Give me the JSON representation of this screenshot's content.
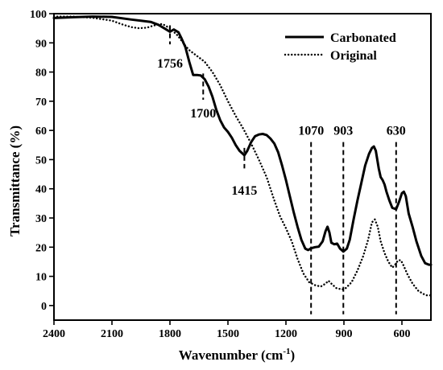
{
  "chart_data": {
    "type": "line",
    "title": "",
    "xlabel": "Wavenumber (cm",
    "xlabel_sup": "-1",
    "xlabel_tail": ")",
    "ylabel": "Transmittance (%)",
    "xlim": [
      2400,
      450
    ],
    "ylim": [
      -5,
      100
    ],
    "x_reversed": true,
    "x_ticks": [
      2400,
      2100,
      1800,
      1500,
      1200,
      900,
      600
    ],
    "y_ticks": [
      0,
      10,
      20,
      30,
      40,
      50,
      60,
      70,
      80,
      90,
      100
    ],
    "grid": false,
    "legend": "top-right",
    "series": [
      {
        "name": "Carbonated",
        "style": "solid",
        "color": "#000000",
        "points": [
          [
            2400,
            98.5
          ],
          [
            2300,
            98.8
          ],
          [
            2200,
            99.0
          ],
          [
            2100,
            98.9
          ],
          [
            2000,
            98.0
          ],
          [
            1950,
            97.6
          ],
          [
            1900,
            97.2
          ],
          [
            1860,
            96.2
          ],
          [
            1830,
            95.0
          ],
          [
            1800,
            93.8
          ],
          [
            1780,
            94.6
          ],
          [
            1756,
            93.6
          ],
          [
            1740,
            91.5
          ],
          [
            1720,
            88.5
          ],
          [
            1700,
            83.5
          ],
          [
            1680,
            79.0
          ],
          [
            1660,
            79.0
          ],
          [
            1640,
            78.8
          ],
          [
            1620,
            77.5
          ],
          [
            1600,
            75.0
          ],
          [
            1580,
            71.5
          ],
          [
            1560,
            67.0
          ],
          [
            1540,
            63.5
          ],
          [
            1520,
            61.0
          ],
          [
            1500,
            59.5
          ],
          [
            1480,
            57.5
          ],
          [
            1460,
            55.0
          ],
          [
            1440,
            53.0
          ],
          [
            1415,
            51.5
          ],
          [
            1400,
            53.0
          ],
          [
            1380,
            56.0
          ],
          [
            1360,
            58.0
          ],
          [
            1340,
            58.6
          ],
          [
            1320,
            58.8
          ],
          [
            1300,
            58.4
          ],
          [
            1280,
            57.2
          ],
          [
            1260,
            55.5
          ],
          [
            1240,
            52.5
          ],
          [
            1220,
            48.0
          ],
          [
            1200,
            43.0
          ],
          [
            1180,
            37.5
          ],
          [
            1160,
            32.0
          ],
          [
            1140,
            27.0
          ],
          [
            1120,
            22.5
          ],
          [
            1100,
            19.5
          ],
          [
            1085,
            19.0
          ],
          [
            1070,
            19.6
          ],
          [
            1050,
            20.0
          ],
          [
            1030,
            20.2
          ],
          [
            1010,
            22.0
          ],
          [
            995,
            25.5
          ],
          [
            985,
            27.0
          ],
          [
            975,
            25.0
          ],
          [
            965,
            21.5
          ],
          [
            950,
            21.0
          ],
          [
            935,
            21.2
          ],
          [
            920,
            19.5
          ],
          [
            903,
            18.5
          ],
          [
            885,
            19.5
          ],
          [
            870,
            22.5
          ],
          [
            850,
            29.5
          ],
          [
            830,
            36.0
          ],
          [
            810,
            42.0
          ],
          [
            790,
            48.0
          ],
          [
            770,
            52.0
          ],
          [
            755,
            54.0
          ],
          [
            745,
            54.5
          ],
          [
            735,
            53.0
          ],
          [
            720,
            47.0
          ],
          [
            710,
            44.0
          ],
          [
            700,
            43.0
          ],
          [
            690,
            41.5
          ],
          [
            680,
            39.0
          ],
          [
            665,
            36.0
          ],
          [
            650,
            33.5
          ],
          [
            630,
            33.0
          ],
          [
            615,
            35.5
          ],
          [
            600,
            38.5
          ],
          [
            590,
            39.0
          ],
          [
            580,
            37.5
          ],
          [
            565,
            31.5
          ],
          [
            545,
            27.0
          ],
          [
            525,
            22.0
          ],
          [
            500,
            17.0
          ],
          [
            480,
            14.5
          ],
          [
            460,
            14.0
          ],
          [
            450,
            14.0
          ]
        ]
      },
      {
        "name": "Original",
        "style": "dotted",
        "color": "#000000",
        "points": [
          [
            2400,
            99.0
          ],
          [
            2300,
            99.0
          ],
          [
            2200,
            98.6
          ],
          [
            2100,
            97.6
          ],
          [
            2050,
            96.4
          ],
          [
            2000,
            95.4
          ],
          [
            1960,
            95.0
          ],
          [
            1920,
            95.2
          ],
          [
            1880,
            96.0
          ],
          [
            1840,
            96.5
          ],
          [
            1800,
            95.0
          ],
          [
            1760,
            92.5
          ],
          [
            1720,
            89.0
          ],
          [
            1700,
            87.5
          ],
          [
            1660,
            85.5
          ],
          [
            1620,
            83.5
          ],
          [
            1580,
            80.0
          ],
          [
            1540,
            75.5
          ],
          [
            1500,
            70.0
          ],
          [
            1460,
            65.0
          ],
          [
            1420,
            60.5
          ],
          [
            1380,
            55.5
          ],
          [
            1340,
            50.0
          ],
          [
            1300,
            44.0
          ],
          [
            1260,
            36.0
          ],
          [
            1230,
            30.5
          ],
          [
            1200,
            26.5
          ],
          [
            1170,
            22.0
          ],
          [
            1140,
            16.0
          ],
          [
            1110,
            11.0
          ],
          [
            1080,
            8.0
          ],
          [
            1050,
            7.0
          ],
          [
            1020,
            6.5
          ],
          [
            995,
            7.5
          ],
          [
            980,
            8.5
          ],
          [
            965,
            7.5
          ],
          [
            940,
            6.0
          ],
          [
            910,
            5.5
          ],
          [
            890,
            6.0
          ],
          [
            860,
            8.0
          ],
          [
            830,
            12.0
          ],
          [
            800,
            17.0
          ],
          [
            775,
            22.5
          ],
          [
            755,
            28.5
          ],
          [
            740,
            29.5
          ],
          [
            725,
            27.0
          ],
          [
            710,
            22.0
          ],
          [
            690,
            18.0
          ],
          [
            670,
            15.0
          ],
          [
            650,
            13.0
          ],
          [
            635,
            14.0
          ],
          [
            620,
            15.5
          ],
          [
            605,
            15.5
          ],
          [
            590,
            13.5
          ],
          [
            570,
            10.5
          ],
          [
            545,
            7.5
          ],
          [
            515,
            5.0
          ],
          [
            490,
            4.0
          ],
          [
            470,
            3.5
          ],
          [
            450,
            3.5
          ]
        ]
      }
    ],
    "annotations": [
      {
        "label": "1756",
        "x": 1800,
        "y_from": 96.0,
        "y_to": 89.5,
        "label_y": 81.5
      },
      {
        "label": "1700",
        "x": 1628,
        "y_from": 79.5,
        "y_to": 70.5,
        "label_y": 64.5
      },
      {
        "label": "1415",
        "x": 1415,
        "y_from": 54.0,
        "y_to": 47.0,
        "label_y": 38.0
      },
      {
        "label": "1070",
        "x": 1070,
        "y_from": 56.0,
        "y_to": -3.0,
        "label_y": 58.5
      },
      {
        "label": "903",
        "x": 903,
        "y_from": 56.0,
        "y_to": -3.0,
        "label_y": 58.5
      },
      {
        "label": "630",
        "x": 630,
        "y_from": 56.0,
        "y_to": -3.0,
        "label_y": 58.5
      }
    ]
  }
}
